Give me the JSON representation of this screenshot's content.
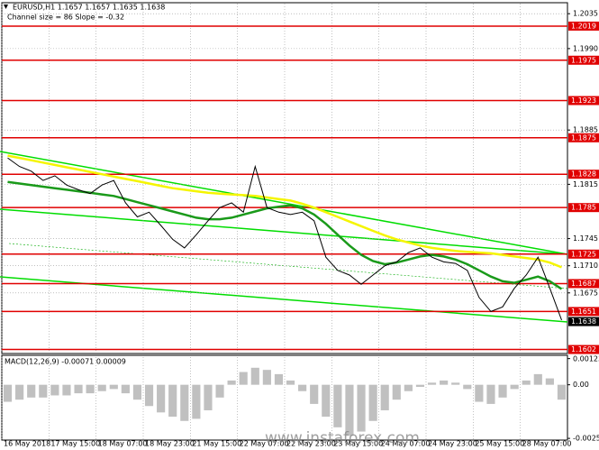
{
  "chart_data": [
    {
      "type": "line",
      "title": "EURUSD,H1  1.1657 1.1657 1.1635 1.1638",
      "subtitle": "Channel size = 86 Slope = -0.32",
      "categories": [
        "16 May 2018",
        null,
        null,
        null,
        "17 May 15:00",
        null,
        null,
        null,
        "18 May 07:00",
        null,
        null,
        null,
        "18 May 23:00",
        null,
        null,
        null,
        "21 May 15:00",
        null,
        null,
        null,
        "22 May 07:00",
        null,
        null,
        null,
        "22 May 23:00",
        null,
        null,
        null,
        "23 May 15:00",
        null,
        null,
        null,
        "24 May 07:00",
        null,
        null,
        null,
        "24 May 23:00",
        null,
        null,
        null,
        "25 May 15:00",
        null,
        null,
        null,
        "28 May 07:00",
        null,
        null,
        null
      ],
      "series": [
        {
          "color": "#000000",
          "values": [
            1.1849,
            1.1838,
            1.1832,
            1.182,
            1.1826,
            1.1814,
            1.1808,
            1.1803,
            1.1814,
            1.182,
            1.1791,
            1.1773,
            1.1779,
            1.1762,
            1.1744,
            1.1733,
            1.175,
            1.1768,
            1.1785,
            1.1791,
            1.1779,
            1.1838,
            1.1785,
            1.1779,
            1.1776,
            1.1779,
            1.1768,
            1.1721,
            1.1704,
            1.1698,
            1.1686,
            1.1698,
            1.171,
            1.1715,
            1.1727,
            1.1733,
            1.1721,
            1.1715,
            1.1713,
            1.1704,
            1.1669,
            1.1651,
            1.1657,
            1.1681,
            1.1698,
            1.1721,
            1.1681,
            1.164
          ]
        },
        {
          "color": "#f5f500",
          "values": [
            1.1852,
            1.1849,
            1.1846,
            1.1843,
            1.184,
            1.1837,
            1.1834,
            1.1831,
            1.1828,
            1.1825,
            1.1822,
            1.1819,
            1.1816,
            1.1813,
            1.181,
            1.1808,
            1.1806,
            1.1804,
            1.1803,
            1.1802,
            1.1801,
            1.18,
            1.1798,
            1.1796,
            1.1794,
            1.179,
            1.1785,
            1.1779,
            1.1773,
            1.1767,
            1.1761,
            1.1755,
            1.1749,
            1.1744,
            1.174,
            1.1736,
            1.1733,
            1.1731,
            1.1729,
            1.1728,
            1.1727,
            1.1726,
            1.1724,
            1.1722,
            1.172,
            1.1718,
            1.1714,
            1.1708
          ]
        },
        {
          "color": "#1a9a1a",
          "values": [
            1.1818,
            1.1816,
            1.1814,
            1.1812,
            1.181,
            1.1808,
            1.1806,
            1.1804,
            1.1802,
            1.18,
            1.1796,
            1.1792,
            1.1788,
            1.1784,
            1.178,
            1.1776,
            1.1772,
            1.177,
            1.177,
            1.1772,
            1.1776,
            1.178,
            1.1784,
            1.1786,
            1.1788,
            1.1784,
            1.1776,
            1.1764,
            1.175,
            1.1736,
            1.1724,
            1.1716,
            1.1712,
            1.1714,
            1.1718,
            1.1722,
            1.1724,
            1.1722,
            1.1718,
            1.1712,
            1.1704,
            1.1696,
            1.169,
            1.1688,
            1.1692,
            1.1696,
            1.169,
            1.168
          ]
        }
      ],
      "ylim": [
        1.1598,
        1.2048
      ],
      "yticks": [
        1.2035,
        {
          "value": 1.199,
          "label": "1.1990"
        },
        1.1885,
        1.1815,
        1.1745,
        {
          "value": 1.171,
          "label": "1.1710"
        },
        1.1675
      ],
      "levels": [
        1.2019,
        1.1975,
        1.1923,
        1.1875,
        1.1828,
        1.1785,
        1.1725,
        1.1687,
        1.1651,
        1.1602
      ],
      "level_color": "#e00000",
      "current_price": 1.1638,
      "grid": true,
      "watermark": "www.instaforex.com"
    },
    {
      "type": "bar",
      "title": "MACD(12,26,9) -0.00071 0.00009",
      "color": "#c0c0c0",
      "values": [
        -0.0008,
        -0.0007,
        -0.0006,
        -0.0006,
        -0.0005,
        -0.0005,
        -0.0004,
        -0.0004,
        -0.0003,
        -0.0002,
        -0.0004,
        -0.0007,
        -0.001,
        -0.0013,
        -0.0015,
        -0.0017,
        -0.0016,
        -0.0012,
        -0.0006,
        0.0002,
        0.0006,
        0.0008,
        0.0007,
        0.0005,
        0.0002,
        -0.0003,
        -0.0009,
        -0.0015,
        -0.002,
        -0.0024,
        -0.0022,
        -0.0017,
        -0.0012,
        -0.0007,
        -0.0003,
        -0.0001,
        0.0001,
        0.0002,
        0.0001,
        -0.0002,
        -0.0008,
        -0.0009,
        -0.0006,
        -0.0002,
        0.0002,
        0.0005,
        0.0003,
        -0.0007
      ],
      "ylim": [
        -0.0026,
        0.0013
      ],
      "yticks": [
        0.00123,
        {
          "value": 0,
          "label": "0.00"
        },
        -0.00252
      ]
    }
  ]
}
